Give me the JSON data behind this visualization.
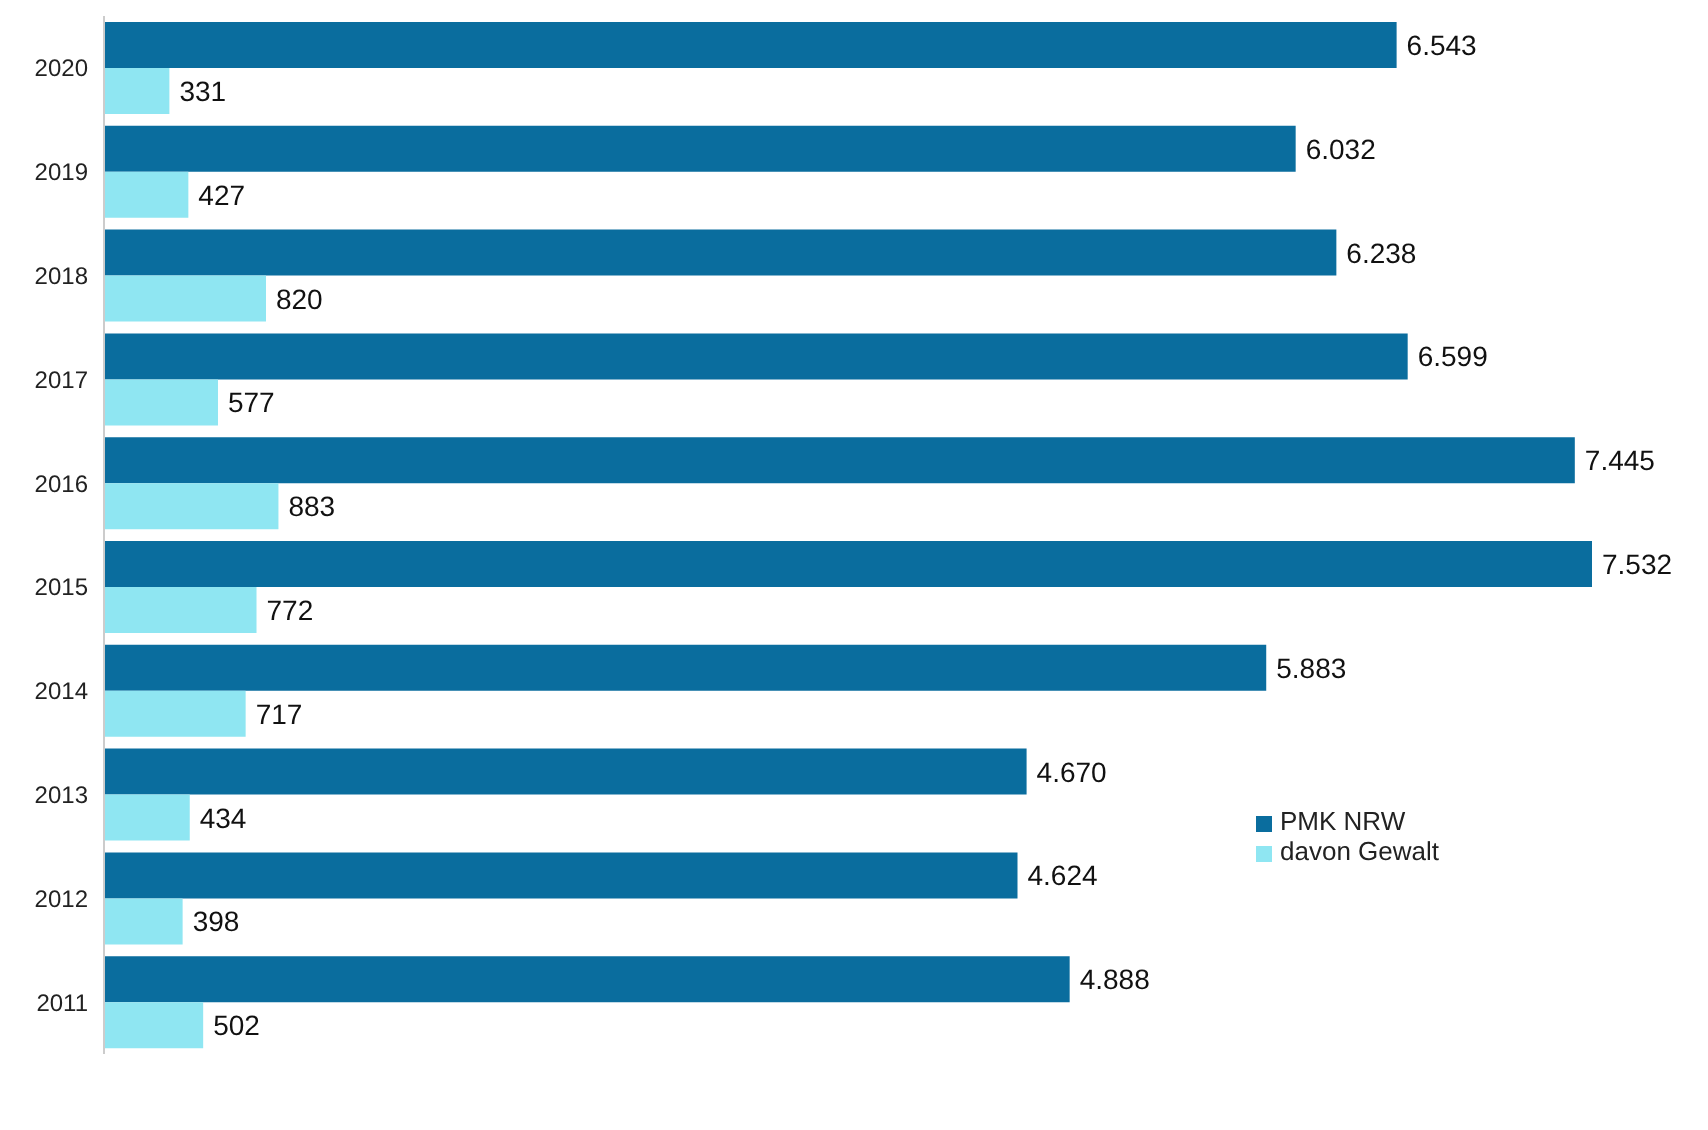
{
  "chart_data": {
    "type": "bar",
    "orientation": "horizontal",
    "categories": [
      "2020",
      "2019",
      "2018",
      "2017",
      "2016",
      "2015",
      "2014",
      "2013",
      "2012",
      "2011"
    ],
    "series": [
      {
        "name": "PMK NRW",
        "color": "#0a6d9e",
        "values": [
          6543,
          6032,
          6238,
          6599,
          7445,
          7532,
          5883,
          4670,
          4624,
          4888
        ],
        "value_labels": [
          "6.543",
          "6.032",
          "6.238",
          "6.599",
          "7.445",
          "7.532",
          "5.883",
          "4.670",
          "4.624",
          "4.888"
        ]
      },
      {
        "name": "davon Gewalt",
        "color": "#8fe6f2",
        "values": [
          331,
          427,
          820,
          577,
          883,
          772,
          717,
          434,
          398,
          502
        ],
        "value_labels": [
          "331",
          "427",
          "820",
          "577",
          "883",
          "772",
          "717",
          "434",
          "398",
          "502"
        ]
      }
    ],
    "legend": "right",
    "tick_labels": "y"
  }
}
